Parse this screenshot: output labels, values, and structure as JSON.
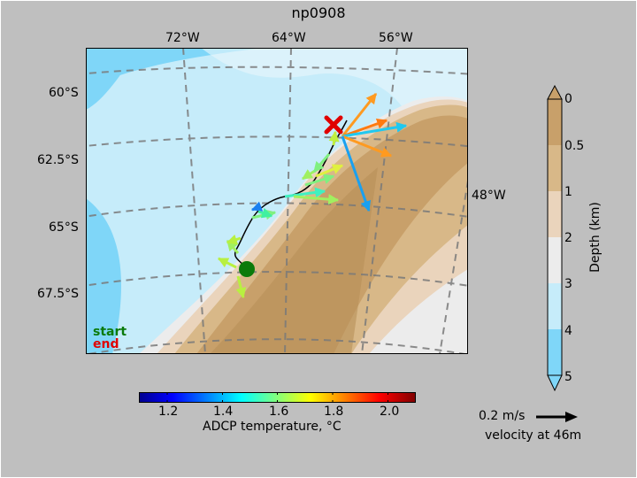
{
  "title": "np0908",
  "map": {
    "lon_labels_top": [
      "72°W",
      "64°W",
      "56°W"
    ],
    "lon_label_right": "48°W",
    "lat_labels": [
      "60°S",
      "62.5°S",
      "65°S",
      "67.5°S"
    ],
    "legend": {
      "start": "start",
      "end": "end",
      "start_color": "#0a7a0a",
      "end_color": "#e00000"
    }
  },
  "temperature_colorbar": {
    "label": "ADCP temperature, °C",
    "ticks": [
      "1.2",
      "1.4",
      "1.6",
      "1.8",
      "2.0"
    ],
    "range": [
      1.1,
      2.1
    ],
    "colormap": "jet"
  },
  "depth_colorbar": {
    "label": "Depth (km)",
    "ticks": [
      "0",
      "0.5",
      "1",
      "2",
      "3",
      "4",
      "5"
    ],
    "colors": [
      "#c8a06a",
      "#d8b888",
      "#ead4bc",
      "#ececec",
      "#c6ecfa",
      "#7fd6f8"
    ]
  },
  "velocity_reference": {
    "speed_label": "0.2 m/s",
    "depth_label": "velocity at 46m"
  },
  "colors": {
    "background": "#bfbfbf",
    "track": "#000000",
    "start_marker": "#0a7a0a",
    "end_marker": "#e00000"
  }
}
